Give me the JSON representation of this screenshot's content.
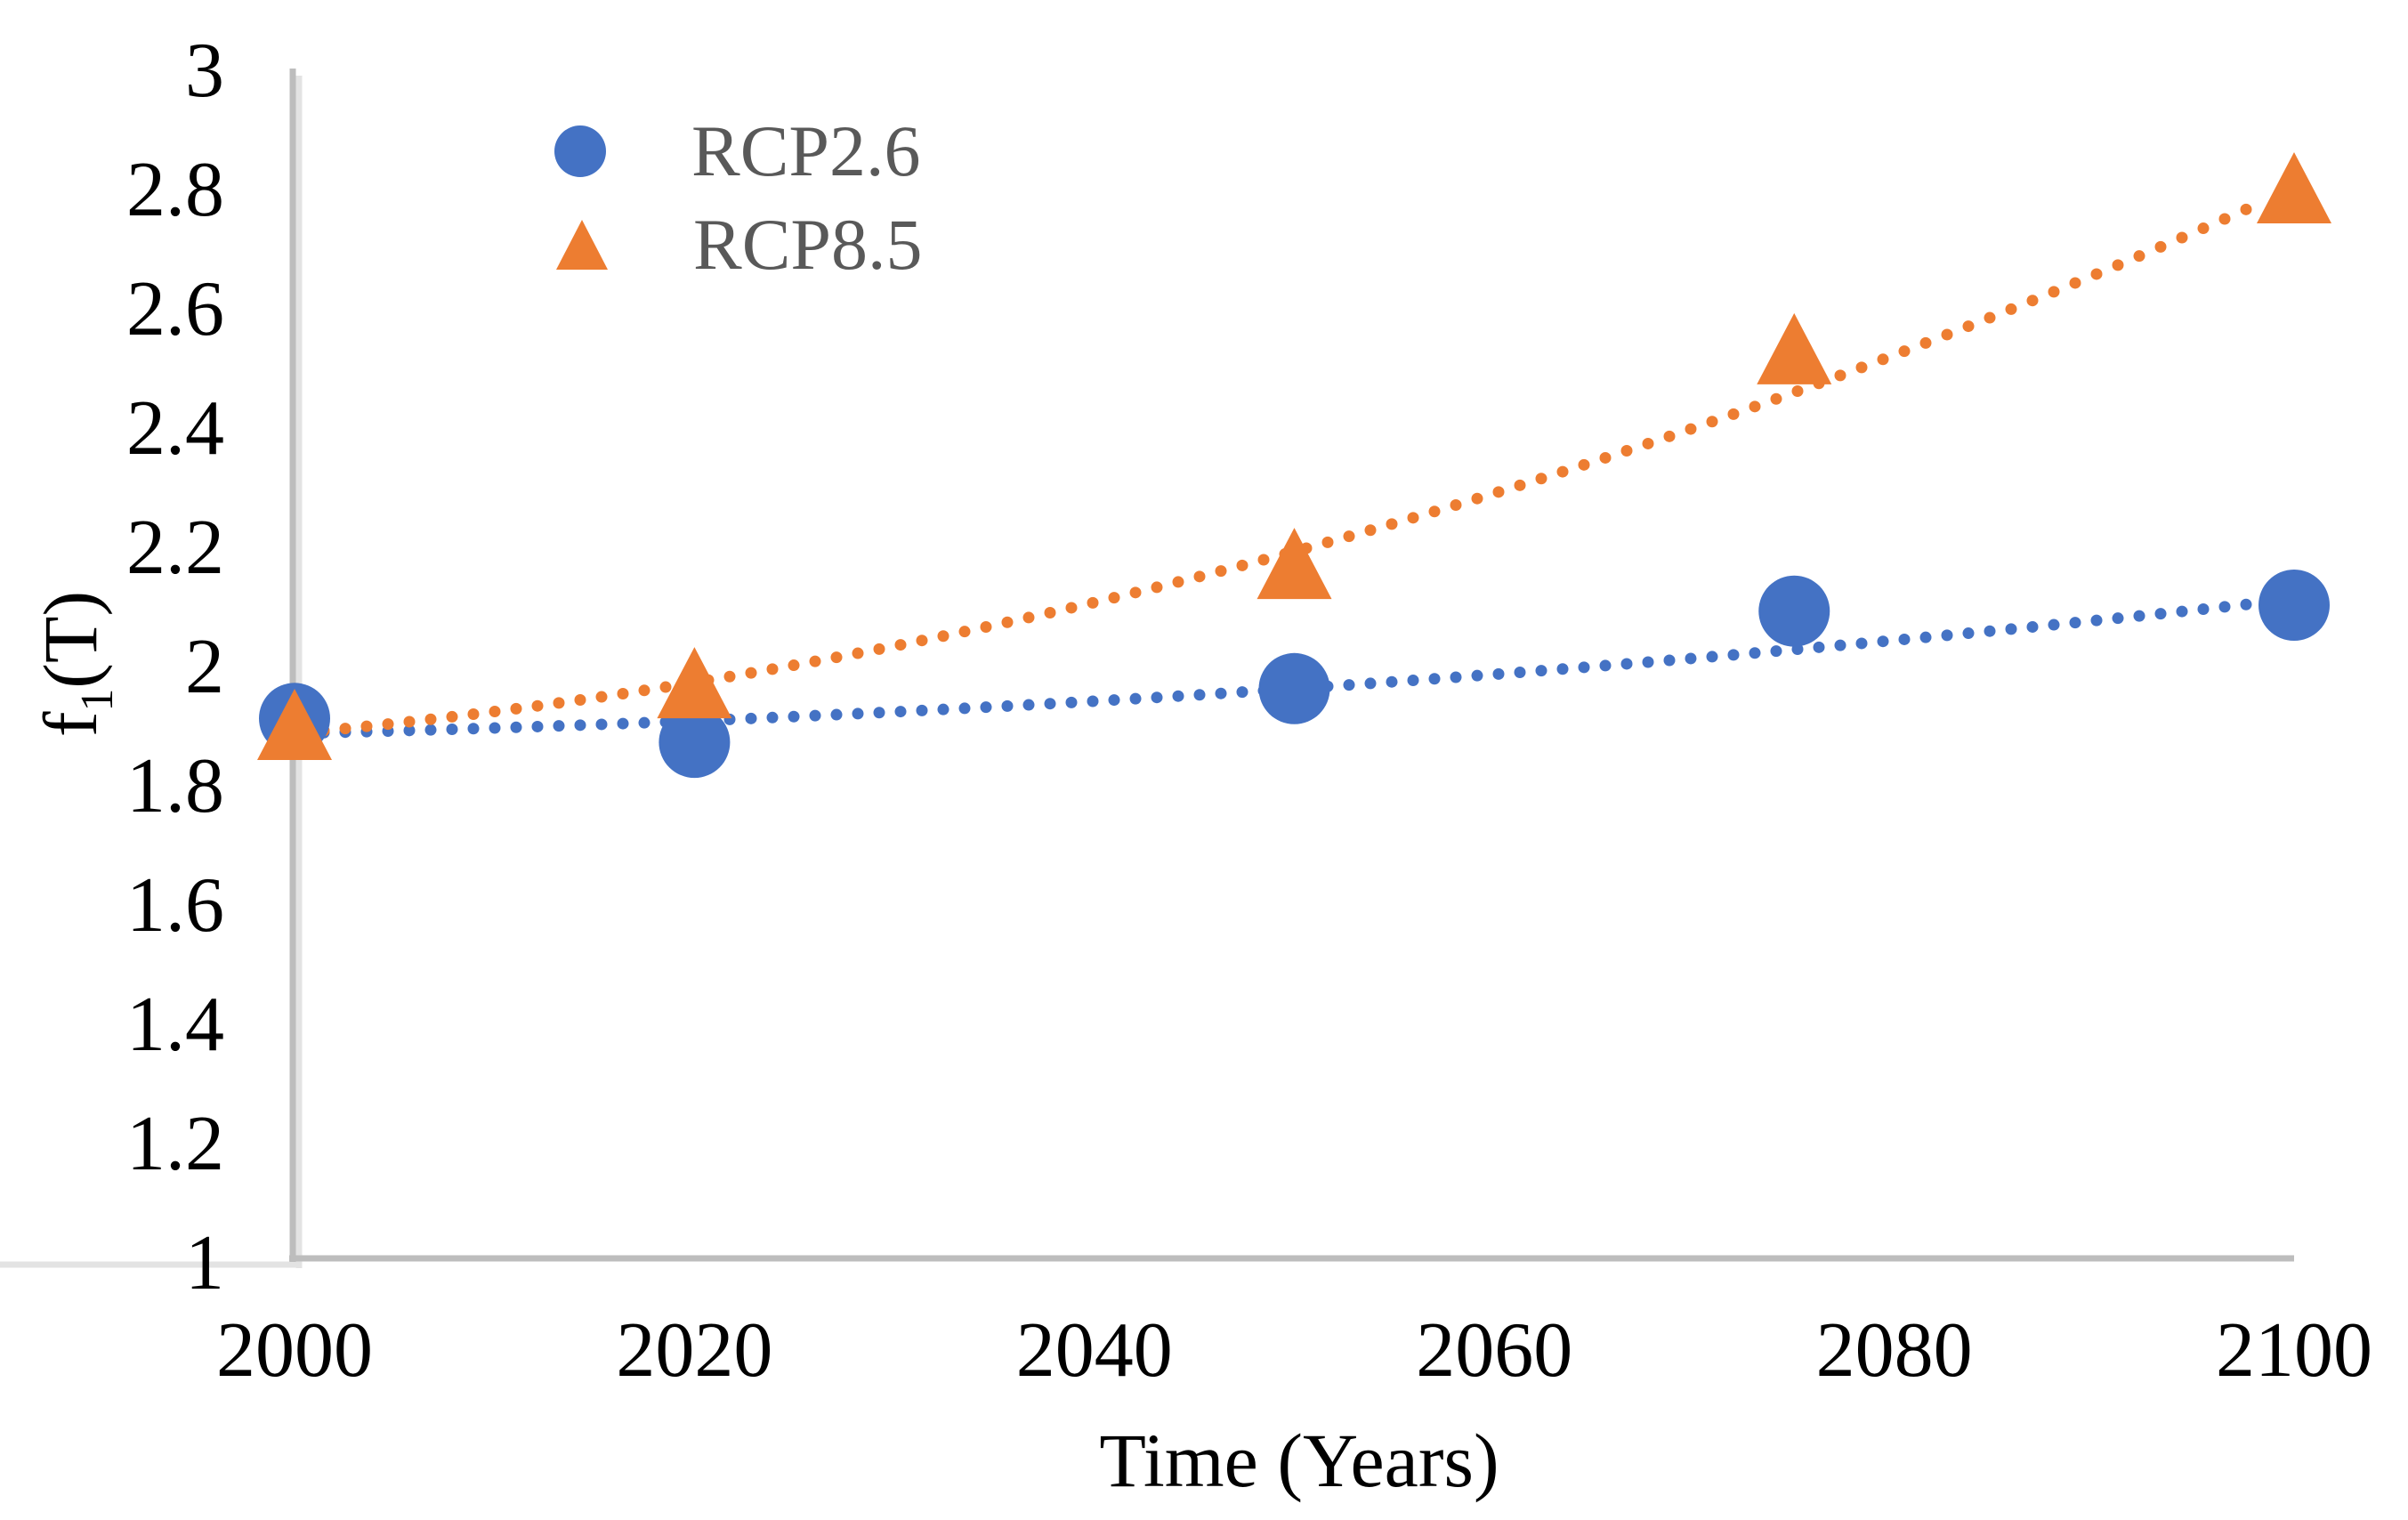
{
  "chart_data": {
    "type": "scatter",
    "title": "",
    "xlabel": "Time (Years)",
    "ylabel": {
      "base": "f",
      "sub": "1",
      "rest": "(T)"
    },
    "xlim": [
      2000,
      2100
    ],
    "ylim": [
      1,
      3
    ],
    "grid": false,
    "background_color": "#ffffff",
    "axis_color": "#BDBDBD",
    "tick_text_color": "#000000",
    "x_ticks": [
      {
        "label": "2000",
        "value": 2000
      },
      {
        "label": "2020",
        "value": 2020
      },
      {
        "label": "2040",
        "value": 2040
      },
      {
        "label": "2060",
        "value": 2060
      },
      {
        "label": "2080",
        "value": 2080
      },
      {
        "label": "2100",
        "value": 2100
      }
    ],
    "y_ticks": [
      {
        "label": "3",
        "value": 3
      },
      {
        "label": "2.8",
        "value": 2.8
      },
      {
        "label": "2.6",
        "value": 2.6
      },
      {
        "label": "2.4",
        "value": 2.4
      },
      {
        "label": "2.2",
        "value": 2.2
      },
      {
        "label": "2",
        "value": 2
      },
      {
        "label": "1.8",
        "value": 1.8
      },
      {
        "label": "1.6",
        "value": 1.6
      },
      {
        "label": "1.4",
        "value": 1.4
      },
      {
        "label": "1.2",
        "value": 1.2
      },
      {
        "label": "1",
        "value": 1
      }
    ],
    "x": [
      2000,
      2020,
      2050,
      2075,
      2100
    ],
    "series": [
      {
        "name": "RCP2.6",
        "marker": "circle",
        "color": "#4472C4",
        "values": [
          1.91,
          1.87,
          1.96,
          2.09,
          2.1
        ],
        "trendline": {
          "style": "dotted",
          "type": "quadratic",
          "anchors_x": [
            2000,
            2050,
            2100
          ],
          "anchors_y": [
            1.885,
            1.96,
            2.11
          ]
        }
      },
      {
        "name": "RCP8.5",
        "marker": "triangle",
        "color": "#ED7D31",
        "values": [
          1.9,
          1.97,
          2.17,
          2.53,
          2.8
        ],
        "trendline": {
          "style": "dotted",
          "type": "quadratic",
          "anchors_x": [
            2000,
            2050,
            2100
          ],
          "anchors_y": [
            1.885,
            2.19,
            2.8
          ]
        }
      }
    ],
    "legend": {
      "position": "top-left-inside",
      "text_color": "#595959",
      "items": [
        {
          "label": "RCP2.6",
          "marker": "circle",
          "color": "#4472C4"
        },
        {
          "label": "RCP8.5",
          "marker": "triangle",
          "color": "#ED7D31"
        }
      ]
    }
  }
}
